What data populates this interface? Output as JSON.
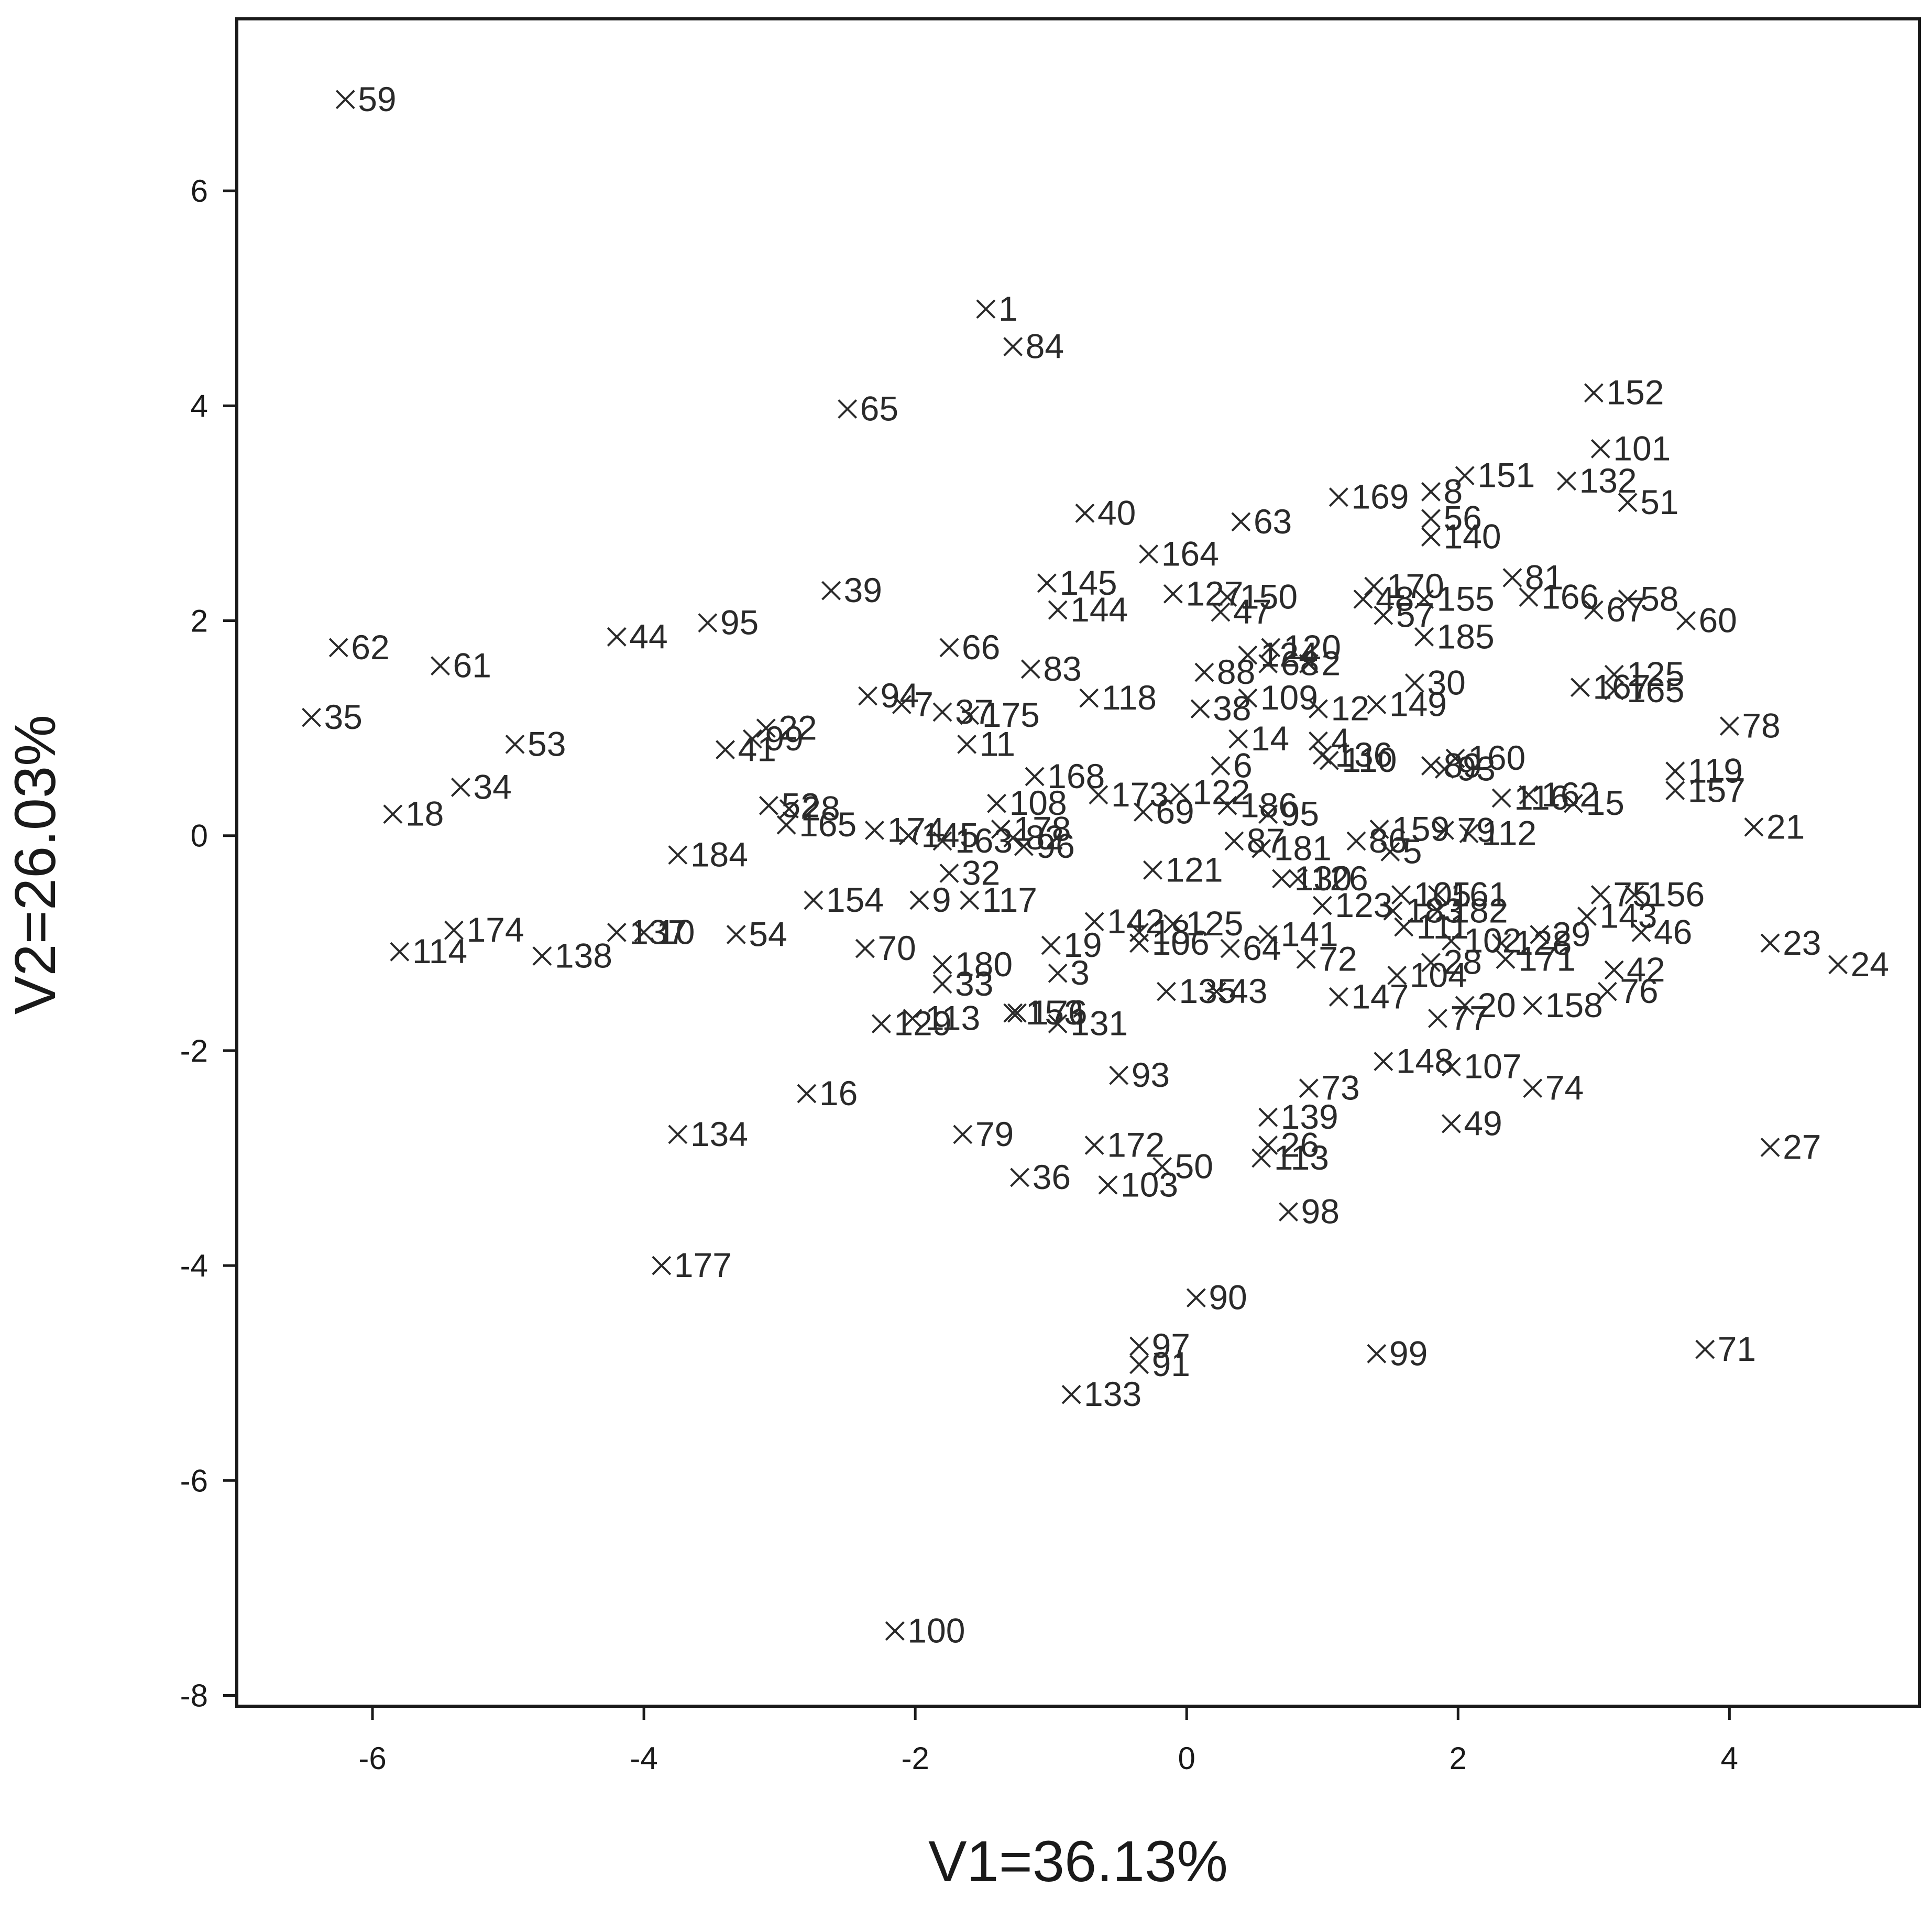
{
  "chart_data": {
    "type": "scatter",
    "title": "",
    "xlabel": "V1=36.13%",
    "ylabel": "V2=26.03%",
    "xlim": [
      -7,
      5.4
    ],
    "ylim": [
      -8.1,
      7.6
    ],
    "xticks": [
      -6,
      -4,
      -2,
      0,
      2,
      4
    ],
    "yticks": [
      -8,
      -6,
      -4,
      -2,
      0,
      2,
      4,
      6
    ],
    "xtick_labels": [
      "-6",
      "-4",
      "-2",
      "0",
      "2",
      "4"
    ],
    "ytick_labels": [
      "-8",
      "-6",
      "-4",
      "-2",
      "0",
      "2",
      "4",
      "6"
    ],
    "grid": false,
    "marker": "x",
    "points": [
      {
        "label": "59",
        "x": -6.2,
        "y": 6.85
      },
      {
        "label": "1",
        "x": -1.48,
        "y": 4.9
      },
      {
        "label": "84",
        "x": -1.28,
        "y": 4.55
      },
      {
        "label": "65",
        "x": -2.5,
        "y": 3.97
      },
      {
        "label": "152",
        "x": 3.0,
        "y": 4.12
      },
      {
        "label": "101",
        "x": 3.05,
        "y": 3.6
      },
      {
        "label": "151",
        "x": 2.05,
        "y": 3.35
      },
      {
        "label": "132",
        "x": 2.8,
        "y": 3.3
      },
      {
        "label": "51",
        "x": 3.25,
        "y": 3.1
      },
      {
        "label": "8",
        "x": 1.8,
        "y": 3.2
      },
      {
        "label": "169",
        "x": 1.12,
        "y": 3.15
      },
      {
        "label": "56",
        "x": 1.8,
        "y": 2.95
      },
      {
        "label": "140",
        "x": 1.8,
        "y": 2.78
      },
      {
        "label": "40",
        "x": -0.75,
        "y": 3.0
      },
      {
        "label": "63",
        "x": 0.4,
        "y": 2.92
      },
      {
        "label": "164",
        "x": -0.28,
        "y": 2.62
      },
      {
        "label": "81",
        "x": 2.4,
        "y": 2.4
      },
      {
        "label": "39",
        "x": -2.62,
        "y": 2.28
      },
      {
        "label": "145",
        "x": -1.03,
        "y": 2.35
      },
      {
        "label": "127",
        "x": -0.1,
        "y": 2.25
      },
      {
        "label": "150",
        "x": 0.3,
        "y": 2.22
      },
      {
        "label": "170",
        "x": 1.38,
        "y": 2.32
      },
      {
        "label": "48",
        "x": 1.3,
        "y": 2.2
      },
      {
        "label": "155",
        "x": 1.75,
        "y": 2.2
      },
      {
        "label": "166",
        "x": 2.52,
        "y": 2.22
      },
      {
        "label": "67",
        "x": 3.0,
        "y": 2.1
      },
      {
        "label": "58",
        "x": 3.25,
        "y": 2.2
      },
      {
        "label": "60",
        "x": 3.68,
        "y": 2.0
      },
      {
        "label": "144",
        "x": -0.95,
        "y": 2.1
      },
      {
        "label": "47",
        "x": 0.25,
        "y": 2.08
      },
      {
        "label": "57",
        "x": 1.45,
        "y": 2.05
      },
      {
        "label": "95",
        "x": -3.53,
        "y": 1.98
      },
      {
        "label": "44",
        "x": -4.2,
        "y": 1.85
      },
      {
        "label": "185",
        "x": 1.75,
        "y": 1.85
      },
      {
        "label": "62",
        "x": -6.25,
        "y": 1.75
      },
      {
        "label": "66",
        "x": -1.75,
        "y": 1.75
      },
      {
        "label": "124",
        "x": 0.45,
        "y": 1.68
      },
      {
        "label": "120",
        "x": 0.62,
        "y": 1.75
      },
      {
        "label": "68",
        "x": 0.6,
        "y": 1.6
      },
      {
        "label": "2",
        "x": 0.9,
        "y": 1.6
      },
      {
        "label": "61",
        "x": -5.5,
        "y": 1.58
      },
      {
        "label": "83",
        "x": -1.15,
        "y": 1.55
      },
      {
        "label": "88",
        "x": 0.13,
        "y": 1.52
      },
      {
        "label": "125",
        "x": 3.15,
        "y": 1.5
      },
      {
        "label": "30",
        "x": 1.68,
        "y": 1.42
      },
      {
        "label": "167",
        "x": 2.9,
        "y": 1.38
      },
      {
        "label": "165",
        "x": 3.15,
        "y": 1.35
      },
      {
        "label": "94",
        "x": -2.35,
        "y": 1.3
      },
      {
        "label": "118",
        "x": -0.72,
        "y": 1.28
      },
      {
        "label": "109",
        "x": 0.45,
        "y": 1.28
      },
      {
        "label": "149",
        "x": 1.4,
        "y": 1.22
      },
      {
        "label": "7",
        "x": -2.1,
        "y": 1.22
      },
      {
        "label": "12",
        "x": 0.97,
        "y": 1.18
      },
      {
        "label": "37",
        "x": -1.8,
        "y": 1.15
      },
      {
        "label": "175",
        "x": -1.6,
        "y": 1.12
      },
      {
        "label": "38",
        "x": 0.1,
        "y": 1.18
      },
      {
        "label": "35",
        "x": -6.45,
        "y": 1.1
      },
      {
        "label": "78",
        "x": 4.0,
        "y": 1.02
      },
      {
        "label": "22",
        "x": -3.1,
        "y": 1.0
      },
      {
        "label": "99b",
        "x": -3.2,
        "y": 0.9,
        "display": "99"
      },
      {
        "label": "14",
        "x": 0.38,
        "y": 0.9
      },
      {
        "label": "4",
        "x": 0.97,
        "y": 0.88
      },
      {
        "label": "53",
        "x": -4.95,
        "y": 0.85
      },
      {
        "label": "11",
        "x": -1.62,
        "y": 0.85
      },
      {
        "label": "41",
        "x": -3.4,
        "y": 0.8
      },
      {
        "label": "136",
        "x": 1.0,
        "y": 0.75
      },
      {
        "label": "110",
        "x": 1.05,
        "y": 0.7
      },
      {
        "label": "160",
        "x": 1.98,
        "y": 0.72
      },
      {
        "label": "89",
        "x": 1.8,
        "y": 0.65
      },
      {
        "label": "93b",
        "x": 1.9,
        "y": 0.62,
        "display": "93"
      },
      {
        "label": "6",
        "x": 0.25,
        "y": 0.65
      },
      {
        "label": "119",
        "x": 3.6,
        "y": 0.6
      },
      {
        "label": "168",
        "x": -1.12,
        "y": 0.55
      },
      {
        "label": "34",
        "x": -5.35,
        "y": 0.45
      },
      {
        "label": "122",
        "x": -0.05,
        "y": 0.4
      },
      {
        "label": "173",
        "x": -0.65,
        "y": 0.38
      },
      {
        "label": "157",
        "x": 3.6,
        "y": 0.42
      },
      {
        "label": "116",
        "x": 2.32,
        "y": 0.35
      },
      {
        "label": "162",
        "x": 2.52,
        "y": 0.38
      },
      {
        "label": "15",
        "x": 2.85,
        "y": 0.3
      },
      {
        "label": "108",
        "x": -1.4,
        "y": 0.3
      },
      {
        "label": "186",
        "x": 0.3,
        "y": 0.28
      },
      {
        "label": "52",
        "x": -3.08,
        "y": 0.28
      },
      {
        "label": "28",
        "x": -2.93,
        "y": 0.25
      },
      {
        "label": "69",
        "x": -0.32,
        "y": 0.22
      },
      {
        "label": "95b",
        "x": 0.6,
        "y": 0.2,
        "display": "95"
      },
      {
        "label": "18",
        "x": -5.85,
        "y": 0.2
      },
      {
        "label": "21",
        "x": 4.18,
        "y": 0.08
      },
      {
        "label": "165b",
        "x": -2.95,
        "y": 0.1,
        "display": "165"
      },
      {
        "label": "174b",
        "x": -2.3,
        "y": 0.05,
        "display": "174"
      },
      {
        "label": "178",
        "x": -1.37,
        "y": 0.06
      },
      {
        "label": "159",
        "x": 1.42,
        "y": 0.06
      },
      {
        "label": "79b",
        "x": 1.9,
        "y": 0.05,
        "display": "79"
      },
      {
        "label": "112",
        "x": 2.08,
        "y": 0.02
      },
      {
        "label": "145b",
        "x": -2.05,
        "y": 0.0,
        "display": "145"
      },
      {
        "label": "163",
        "x": -1.8,
        "y": -0.05
      },
      {
        "label": "82",
        "x": -1.28,
        "y": -0.02
      },
      {
        "label": "87",
        "x": 0.35,
        "y": -0.05
      },
      {
        "label": "86",
        "x": 1.25,
        "y": -0.05
      },
      {
        "label": "96",
        "x": -1.2,
        "y": -0.1
      },
      {
        "label": "181",
        "x": 0.55,
        "y": -0.12
      },
      {
        "label": "5",
        "x": 1.5,
        "y": -0.15
      },
      {
        "label": "184",
        "x": -3.75,
        "y": -0.18
      },
      {
        "label": "32",
        "x": -1.75,
        "y": -0.35
      },
      {
        "label": "121",
        "x": -0.25,
        "y": -0.32
      },
      {
        "label": "130",
        "x": 0.7,
        "y": -0.4
      },
      {
        "label": "126",
        "x": 0.82,
        "y": -0.4
      },
      {
        "label": "75",
        "x": 3.05,
        "y": -0.55
      },
      {
        "label": "156",
        "x": 3.3,
        "y": -0.55
      },
      {
        "label": "105",
        "x": 1.58,
        "y": -0.55
      },
      {
        "label": "161",
        "x": 1.85,
        "y": -0.55
      },
      {
        "label": "154",
        "x": -2.75,
        "y": -0.6
      },
      {
        "label": "9",
        "x": -1.97,
        "y": -0.6
      },
      {
        "label": "117",
        "x": -1.6,
        "y": -0.6
      },
      {
        "label": "123",
        "x": 1.0,
        "y": -0.65
      },
      {
        "label": "183",
        "x": 1.52,
        "y": -0.7
      },
      {
        "label": "182",
        "x": 1.85,
        "y": -0.7
      },
      {
        "label": "143",
        "x": 2.95,
        "y": -0.75
      },
      {
        "label": "142",
        "x": -0.68,
        "y": -0.8
      },
      {
        "label": "125b",
        "x": -0.1,
        "y": -0.82,
        "display": "125"
      },
      {
        "label": "111",
        "x": 1.6,
        "y": -0.85
      },
      {
        "label": "174",
        "x": -5.4,
        "y": -0.88
      },
      {
        "label": "46",
        "x": 3.35,
        "y": -0.9
      },
      {
        "label": "137",
        "x": -4.2,
        "y": -0.9
      },
      {
        "label": "10",
        "x": -4.0,
        "y": -0.9
      },
      {
        "label": "54",
        "x": -3.32,
        "y": -0.92
      },
      {
        "label": "141",
        "x": 0.6,
        "y": -0.92
      },
      {
        "label": "18b",
        "x": -0.35,
        "y": -0.9,
        "display": "18"
      },
      {
        "label": "29",
        "x": 2.6,
        "y": -0.92
      },
      {
        "label": "106",
        "x": -0.35,
        "y": -1.0
      },
      {
        "label": "19",
        "x": -1.0,
        "y": -1.02
      },
      {
        "label": "102",
        "x": 1.95,
        "y": -0.98
      },
      {
        "label": "128",
        "x": 2.32,
        "y": -1.0
      },
      {
        "label": "23",
        "x": 4.3,
        "y": -1.0
      },
      {
        "label": "70",
        "x": -2.37,
        "y": -1.05
      },
      {
        "label": "64",
        "x": 0.32,
        "y": -1.05
      },
      {
        "label": "114",
        "x": -5.8,
        "y": -1.08
      },
      {
        "label": "72",
        "x": 0.88,
        "y": -1.15
      },
      {
        "label": "171",
        "x": 2.35,
        "y": -1.15
      },
      {
        "label": "138",
        "x": -4.75,
        "y": -1.12
      },
      {
        "label": "180",
        "x": -1.8,
        "y": -1.2
      },
      {
        "label": "24",
        "x": 4.8,
        "y": -1.2
      },
      {
        "label": "28b",
        "x": 1.8,
        "y": -1.18,
        "display": "28"
      },
      {
        "label": "42",
        "x": 3.15,
        "y": -1.25
      },
      {
        "label": "3",
        "x": -0.95,
        "y": -1.28
      },
      {
        "label": "104",
        "x": 1.55,
        "y": -1.3
      },
      {
        "label": "33",
        "x": -1.8,
        "y": -1.38
      },
      {
        "label": "135",
        "x": -0.15,
        "y": -1.45
      },
      {
        "label": "43",
        "x": 0.22,
        "y": -1.45
      },
      {
        "label": "76",
        "x": 3.1,
        "y": -1.45
      },
      {
        "label": "147",
        "x": 1.12,
        "y": -1.5
      },
      {
        "label": "20",
        "x": 2.05,
        "y": -1.58
      },
      {
        "label": "158",
        "x": 2.55,
        "y": -1.58
      },
      {
        "label": "153",
        "x": -1.28,
        "y": -1.65
      },
      {
        "label": "176",
        "x": -1.25,
        "y": -1.65
      },
      {
        "label": "113",
        "x": -2.02,
        "y": -1.7
      },
      {
        "label": "77",
        "x": 1.85,
        "y": -1.7
      },
      {
        "label": "129",
        "x": -2.25,
        "y": -1.75
      },
      {
        "label": "131",
        "x": -0.95,
        "y": -1.75
      },
      {
        "label": "148",
        "x": 1.45,
        "y": -2.1
      },
      {
        "label": "107",
        "x": 1.95,
        "y": -2.15
      },
      {
        "label": "93",
        "x": -0.5,
        "y": -2.23
      },
      {
        "label": "73",
        "x": 0.9,
        "y": -2.35
      },
      {
        "label": "74",
        "x": 2.55,
        "y": -2.35
      },
      {
        "label": "16",
        "x": -2.8,
        "y": -2.4
      },
      {
        "label": "139",
        "x": 0.6,
        "y": -2.62
      },
      {
        "label": "49",
        "x": 1.95,
        "y": -2.68
      },
      {
        "label": "134",
        "x": -3.75,
        "y": -2.78
      },
      {
        "label": "79",
        "x": -1.65,
        "y": -2.78
      },
      {
        "label": "26",
        "x": 0.6,
        "y": -2.88
      },
      {
        "label": "172",
        "x": -0.68,
        "y": -2.88
      },
      {
        "label": "27",
        "x": 4.3,
        "y": -2.9
      },
      {
        "label": "113b",
        "x": 0.55,
        "y": -3.0,
        "display": "113"
      },
      {
        "label": "50",
        "x": -0.18,
        "y": -3.08
      },
      {
        "label": "36",
        "x": -1.23,
        "y": -3.18
      },
      {
        "label": "103",
        "x": -0.58,
        "y": -3.25
      },
      {
        "label": "98",
        "x": 0.75,
        "y": -3.5
      },
      {
        "label": "177",
        "x": -3.87,
        "y": -4.0
      },
      {
        "label": "90",
        "x": 0.07,
        "y": -4.3
      },
      {
        "label": "97",
        "x": -0.35,
        "y": -4.75
      },
      {
        "label": "91",
        "x": -0.35,
        "y": -4.92
      },
      {
        "label": "99",
        "x": 1.4,
        "y": -4.82
      },
      {
        "label": "71",
        "x": 3.82,
        "y": -4.78
      },
      {
        "label": "133",
        "x": -0.85,
        "y": -5.2
      },
      {
        "label": "100",
        "x": -2.15,
        "y": -7.4
      }
    ]
  }
}
